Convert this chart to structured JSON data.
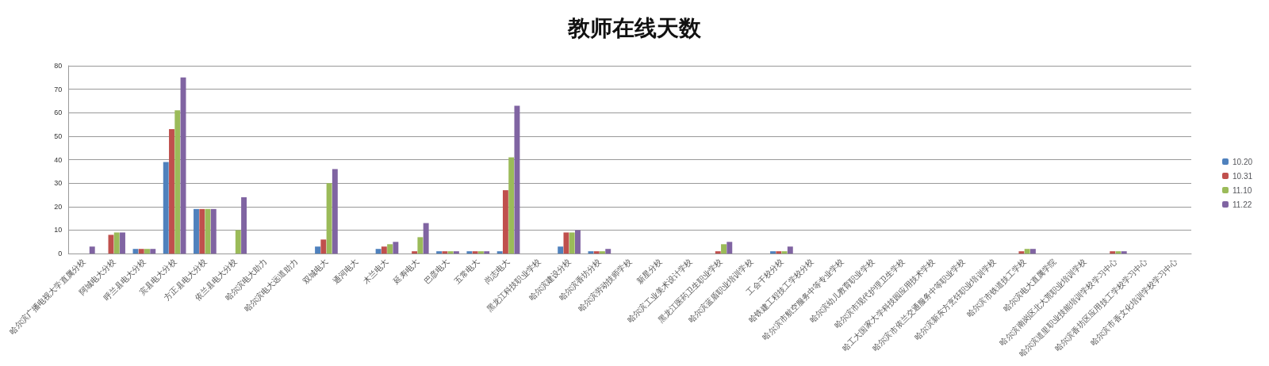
{
  "chart_data": {
    "type": "bar",
    "title": "教师在线天数",
    "categories": [
      "哈尔滨广播电视大学直属分校",
      "阿城电大分校",
      "呼兰县电大分校",
      "宾县电大分校",
      "方正县电大分校",
      "依兰县电大分校",
      "哈尔滨电大助力",
      "哈尔滨电大远道助力",
      "双城电大",
      "通河电大",
      "木兰电大",
      "延寿电大",
      "巴彦电大",
      "五常电大",
      "尚志电大",
      "黑龙江科技职业学校",
      "哈尔滨建设分校",
      "哈尔滨香坊分校",
      "哈尔滨劳动技师学校",
      "新星分校",
      "哈尔滨工业美术设计学校",
      "黑龙江医药卫生职业学校",
      "哈尔滨蓝盾职业培训学校",
      "工会干校分校",
      "哈铁建工程技工学校分校",
      "哈尔滨市航空服务中等专业学校",
      "哈尔滨幼儿教育职业学校",
      "哈尔滨市现代护理卫生学校",
      "哈工大国家大学科技园应用技术学校",
      "哈尔滨市依兰交通服务中等职业学校",
      "哈尔滨新东方烹饪职业培训学校",
      "哈尔滨市铁道技工学校",
      "哈尔滨电大直属学院",
      "哈尔滨南岗区北大荒职业培训学校",
      "哈尔滨道里职业技能培训学校学习中心",
      "哈尔滨香坊区应用技工学校学习中心",
      "哈尔滨市香文化培训学校学习中心"
    ],
    "series": [
      {
        "name": "10.20",
        "color": "#4f81bd",
        "values": [
          0,
          0,
          2,
          39,
          19,
          0,
          0,
          0,
          3,
          0,
          2,
          0,
          1,
          1,
          1,
          0,
          3,
          1,
          0,
          0,
          0,
          0,
          0,
          1,
          0,
          0,
          0,
          0,
          0,
          0,
          0,
          0,
          0,
          0,
          0,
          0,
          0
        ]
      },
      {
        "name": "10.31",
        "color": "#c0504d",
        "values": [
          0,
          8,
          2,
          53,
          19,
          0,
          0,
          0,
          6,
          0,
          3,
          1,
          1,
          1,
          27,
          0,
          9,
          1,
          0,
          0,
          0,
          1,
          0,
          1,
          0,
          0,
          0,
          0,
          0,
          0,
          0,
          1,
          0,
          0,
          1,
          0,
          0
        ]
      },
      {
        "name": "11.10",
        "color": "#9bbb59",
        "values": [
          0,
          9,
          2,
          61,
          19,
          10,
          0,
          0,
          30,
          0,
          4,
          7,
          1,
          1,
          41,
          0,
          9,
          1,
          0,
          0,
          0,
          4,
          0,
          1,
          0,
          0,
          0,
          0,
          0,
          0,
          0,
          2,
          0,
          0,
          1,
          0,
          0
        ]
      },
      {
        "name": "11.22",
        "color": "#8064a2",
        "values": [
          3,
          9,
          2,
          75,
          19,
          24,
          0,
          0,
          36,
          0,
          5,
          13,
          1,
          1,
          63,
          0,
          10,
          2,
          0,
          0,
          0,
          5,
          0,
          3,
          0,
          0,
          0,
          0,
          0,
          0,
          0,
          2,
          0,
          0,
          1,
          0,
          0
        ]
      }
    ],
    "ylim": [
      0,
      80
    ],
    "yticks": [
      0,
      10,
      20,
      30,
      40,
      50,
      60,
      70,
      80
    ],
    "grid": "y",
    "legend": "right"
  }
}
